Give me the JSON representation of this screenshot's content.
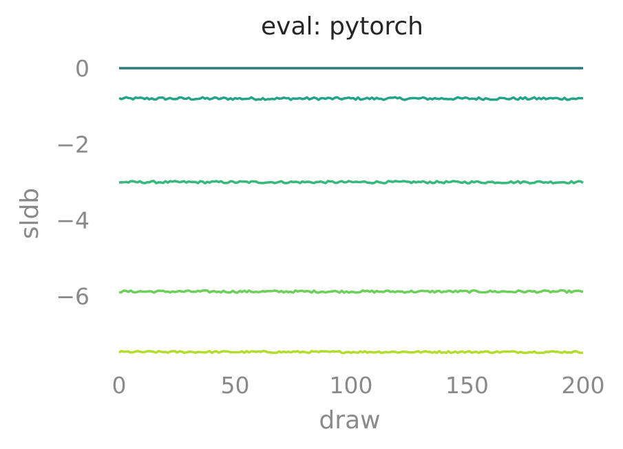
{
  "chart_data": {
    "type": "line",
    "title": "eval: pytorch",
    "xlabel": "draw",
    "ylabel": "sldb",
    "xlim": [
      0,
      200
    ],
    "ylim": [
      -7.7,
      0.5
    ],
    "xticks": [
      0,
      50,
      100,
      150,
      200
    ],
    "yticks": [
      0,
      -2,
      -4,
      -6
    ],
    "xtick_labels": [
      "0",
      "50",
      "100",
      "150",
      "200"
    ],
    "ytick_labels": [
      "0",
      "−2",
      "−4",
      "−6"
    ],
    "grid": false,
    "legend": "none",
    "n_draws": 201,
    "series": [
      {
        "level": 0.0,
        "noise": 0.0,
        "color": "#2a7b7e"
      },
      {
        "level": -0.8,
        "noise": 0.035,
        "color": "#23a387"
      },
      {
        "level": -3.0,
        "noise": 0.03,
        "color": "#36b97a"
      },
      {
        "level": -5.88,
        "noise": 0.03,
        "color": "#6ccf5a"
      },
      {
        "level": -7.47,
        "noise": 0.025,
        "color": "#b2dc2e"
      }
    ]
  }
}
